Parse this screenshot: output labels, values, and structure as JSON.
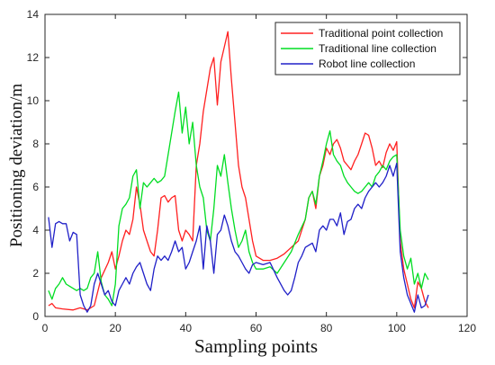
{
  "chart_data": {
    "type": "line",
    "xlabel": "Sampling points",
    "ylabel": "Positioning deviation/m",
    "xlim": [
      0,
      120
    ],
    "ylim": [
      0,
      14
    ],
    "xticks": [
      0,
      20,
      40,
      60,
      80,
      100,
      120
    ],
    "yticks": [
      0,
      2,
      4,
      6,
      8,
      10,
      12,
      14
    ],
    "grid": false,
    "legend_position": "top-right",
    "series": [
      {
        "name": "Traditional point collection",
        "color": "#ff2020",
        "points": [
          [
            1,
            0.5
          ],
          [
            2,
            0.6
          ],
          [
            3,
            0.4
          ],
          [
            5,
            0.35
          ],
          [
            8,
            0.3
          ],
          [
            10,
            0.4
          ],
          [
            12,
            0.3
          ],
          [
            14,
            0.5
          ],
          [
            16,
            1.8
          ],
          [
            18,
            2.5
          ],
          [
            19,
            3.0
          ],
          [
            20,
            2.2
          ],
          [
            21,
            2.8
          ],
          [
            22,
            3.5
          ],
          [
            23,
            4.0
          ],
          [
            24,
            3.8
          ],
          [
            25,
            4.5
          ],
          [
            26,
            6.0
          ],
          [
            27,
            5.2
          ],
          [
            28,
            4.0
          ],
          [
            29,
            3.5
          ],
          [
            30,
            3.0
          ],
          [
            31,
            2.8
          ],
          [
            32,
            4.0
          ],
          [
            33,
            5.5
          ],
          [
            34,
            5.6
          ],
          [
            35,
            5.3
          ],
          [
            36,
            5.5
          ],
          [
            37,
            5.6
          ],
          [
            38,
            4.0
          ],
          [
            39,
            3.5
          ],
          [
            40,
            4.0
          ],
          [
            41,
            3.8
          ],
          [
            42,
            3.5
          ],
          [
            43,
            7.0
          ],
          [
            44,
            8.0
          ],
          [
            45,
            9.5
          ],
          [
            46,
            10.5
          ],
          [
            47,
            11.5
          ],
          [
            48,
            12.0
          ],
          [
            49,
            9.8
          ],
          [
            50,
            11.8
          ],
          [
            51,
            12.5
          ],
          [
            52,
            13.2
          ],
          [
            53,
            11.0
          ],
          [
            54,
            9.0
          ],
          [
            55,
            7.0
          ],
          [
            56,
            6.0
          ],
          [
            57,
            5.5
          ],
          [
            58,
            4.5
          ],
          [
            59,
            3.5
          ],
          [
            60,
            2.8
          ],
          [
            62,
            2.6
          ],
          [
            64,
            2.6
          ],
          [
            66,
            2.7
          ],
          [
            68,
            2.9
          ],
          [
            70,
            3.2
          ],
          [
            72,
            3.5
          ],
          [
            74,
            4.5
          ],
          [
            75,
            5.5
          ],
          [
            76,
            5.8
          ],
          [
            77,
            5.0
          ],
          [
            78,
            6.5
          ],
          [
            79,
            7.0
          ],
          [
            80,
            7.8
          ],
          [
            81,
            7.5
          ],
          [
            82,
            8.0
          ],
          [
            83,
            8.2
          ],
          [
            84,
            7.8
          ],
          [
            85,
            7.2
          ],
          [
            86,
            7.0
          ],
          [
            87,
            6.8
          ],
          [
            88,
            7.2
          ],
          [
            89,
            7.5
          ],
          [
            90,
            8.0
          ],
          [
            91,
            8.5
          ],
          [
            92,
            8.4
          ],
          [
            93,
            7.8
          ],
          [
            94,
            7.0
          ],
          [
            95,
            7.2
          ],
          [
            96,
            6.9
          ],
          [
            97,
            7.6
          ],
          [
            98,
            8.0
          ],
          [
            99,
            7.7
          ],
          [
            100,
            8.1
          ],
          [
            101,
            3.5
          ],
          [
            102,
            2.2
          ],
          [
            103,
            1.5
          ],
          [
            104,
            0.8
          ],
          [
            105,
            0.4
          ],
          [
            106,
            1.6
          ],
          [
            107,
            1.3
          ],
          [
            108,
            0.7
          ],
          [
            109,
            0.4
          ]
        ]
      },
      {
        "name": "Traditional line collection",
        "color": "#00dd22",
        "points": [
          [
            1,
            1.2
          ],
          [
            2,
            0.8
          ],
          [
            3,
            1.3
          ],
          [
            4,
            1.5
          ],
          [
            5,
            1.8
          ],
          [
            6,
            1.5
          ],
          [
            7,
            1.4
          ],
          [
            8,
            1.3
          ],
          [
            9,
            1.2
          ],
          [
            10,
            1.3
          ],
          [
            11,
            1.2
          ],
          [
            12,
            1.3
          ],
          [
            13,
            1.8
          ],
          [
            14,
            2.0
          ],
          [
            15,
            3.0
          ],
          [
            16,
            1.6
          ],
          [
            17,
            1.0
          ],
          [
            18,
            0.8
          ],
          [
            19,
            0.5
          ],
          [
            20,
            1.5
          ],
          [
            21,
            4.2
          ],
          [
            22,
            5.0
          ],
          [
            23,
            5.2
          ],
          [
            24,
            5.5
          ],
          [
            25,
            6.5
          ],
          [
            26,
            6.8
          ],
          [
            27,
            5.0
          ],
          [
            28,
            6.2
          ],
          [
            29,
            6.0
          ],
          [
            30,
            6.2
          ],
          [
            31,
            6.4
          ],
          [
            32,
            6.2
          ],
          [
            33,
            6.3
          ],
          [
            34,
            6.5
          ],
          [
            35,
            7.5
          ],
          [
            36,
            8.5
          ],
          [
            37,
            9.5
          ],
          [
            38,
            10.4
          ],
          [
            39,
            8.5
          ],
          [
            40,
            9.7
          ],
          [
            41,
            8.0
          ],
          [
            42,
            9.0
          ],
          [
            43,
            7.0
          ],
          [
            44,
            6.0
          ],
          [
            45,
            5.5
          ],
          [
            46,
            4.0
          ],
          [
            47,
            3.5
          ],
          [
            48,
            5.0
          ],
          [
            49,
            7.0
          ],
          [
            50,
            6.5
          ],
          [
            51,
            7.5
          ],
          [
            52,
            6.2
          ],
          [
            53,
            5.0
          ],
          [
            54,
            4.0
          ],
          [
            55,
            3.2
          ],
          [
            56,
            3.5
          ],
          [
            57,
            4.0
          ],
          [
            58,
            3.0
          ],
          [
            59,
            2.5
          ],
          [
            60,
            2.2
          ],
          [
            62,
            2.2
          ],
          [
            64,
            2.3
          ],
          [
            66,
            2.0
          ],
          [
            68,
            2.5
          ],
          [
            70,
            3.0
          ],
          [
            72,
            3.8
          ],
          [
            74,
            4.5
          ],
          [
            75,
            5.5
          ],
          [
            76,
            5.8
          ],
          [
            77,
            5.2
          ],
          [
            78,
            6.5
          ],
          [
            79,
            7.2
          ],
          [
            80,
            8.0
          ],
          [
            81,
            8.6
          ],
          [
            82,
            7.5
          ],
          [
            83,
            7.2
          ],
          [
            84,
            7.0
          ],
          [
            85,
            6.5
          ],
          [
            86,
            6.2
          ],
          [
            87,
            6.0
          ],
          [
            88,
            5.8
          ],
          [
            89,
            5.7
          ],
          [
            90,
            5.8
          ],
          [
            91,
            6.0
          ],
          [
            92,
            6.2
          ],
          [
            93,
            6.0
          ],
          [
            94,
            6.5
          ],
          [
            95,
            6.7
          ],
          [
            96,
            7.0
          ],
          [
            97,
            6.8
          ],
          [
            98,
            7.2
          ],
          [
            99,
            7.4
          ],
          [
            100,
            7.5
          ],
          [
            101,
            4.0
          ],
          [
            102,
            2.8
          ],
          [
            103,
            2.2
          ],
          [
            104,
            2.7
          ],
          [
            105,
            1.5
          ],
          [
            106,
            2.0
          ],
          [
            107,
            1.3
          ],
          [
            108,
            2.0
          ],
          [
            109,
            1.7
          ]
        ]
      },
      {
        "name": "Robot line collection",
        "color": "#2020c8",
        "points": [
          [
            1,
            4.6
          ],
          [
            2,
            3.2
          ],
          [
            3,
            4.3
          ],
          [
            4,
            4.4
          ],
          [
            5,
            4.3
          ],
          [
            6,
            4.3
          ],
          [
            7,
            3.5
          ],
          [
            8,
            3.9
          ],
          [
            9,
            3.8
          ],
          [
            10,
            1.0
          ],
          [
            11,
            0.5
          ],
          [
            12,
            0.2
          ],
          [
            13,
            0.5
          ],
          [
            14,
            1.5
          ],
          [
            15,
            2.0
          ],
          [
            16,
            1.5
          ],
          [
            17,
            1.0
          ],
          [
            18,
            1.2
          ],
          [
            19,
            0.7
          ],
          [
            20,
            0.5
          ],
          [
            21,
            1.2
          ],
          [
            22,
            1.5
          ],
          [
            23,
            1.8
          ],
          [
            24,
            1.5
          ],
          [
            25,
            2.0
          ],
          [
            26,
            2.3
          ],
          [
            27,
            2.5
          ],
          [
            28,
            2.0
          ],
          [
            29,
            1.5
          ],
          [
            30,
            1.2
          ],
          [
            31,
            2.2
          ],
          [
            32,
            2.8
          ],
          [
            33,
            2.6
          ],
          [
            34,
            2.8
          ],
          [
            35,
            2.6
          ],
          [
            36,
            3.0
          ],
          [
            37,
            3.5
          ],
          [
            38,
            3.0
          ],
          [
            39,
            3.2
          ],
          [
            40,
            2.2
          ],
          [
            41,
            2.5
          ],
          [
            42,
            3.0
          ],
          [
            43,
            3.5
          ],
          [
            44,
            4.2
          ],
          [
            45,
            2.2
          ],
          [
            46,
            4.2
          ],
          [
            47,
            3.5
          ],
          [
            48,
            2.0
          ],
          [
            49,
            3.8
          ],
          [
            50,
            4.0
          ],
          [
            51,
            4.7
          ],
          [
            52,
            4.2
          ],
          [
            53,
            3.5
          ],
          [
            54,
            3.0
          ],
          [
            55,
            2.8
          ],
          [
            56,
            2.5
          ],
          [
            57,
            2.2
          ],
          [
            58,
            2.0
          ],
          [
            59,
            2.4
          ],
          [
            60,
            2.5
          ],
          [
            62,
            2.4
          ],
          [
            64,
            2.5
          ],
          [
            66,
            1.8
          ],
          [
            68,
            1.2
          ],
          [
            69,
            1.0
          ],
          [
            70,
            1.2
          ],
          [
            71,
            1.8
          ],
          [
            72,
            2.5
          ],
          [
            73,
            2.8
          ],
          [
            74,
            3.2
          ],
          [
            75,
            3.3
          ],
          [
            76,
            3.4
          ],
          [
            77,
            3.0
          ],
          [
            78,
            4.0
          ],
          [
            79,
            4.2
          ],
          [
            80,
            4.0
          ],
          [
            81,
            4.5
          ],
          [
            82,
            4.5
          ],
          [
            83,
            4.2
          ],
          [
            84,
            4.8
          ],
          [
            85,
            3.8
          ],
          [
            86,
            4.4
          ],
          [
            87,
            4.5
          ],
          [
            88,
            5.0
          ],
          [
            89,
            5.2
          ],
          [
            90,
            5.0
          ],
          [
            91,
            5.5
          ],
          [
            92,
            5.8
          ],
          [
            93,
            6.0
          ],
          [
            94,
            6.2
          ],
          [
            95,
            6.0
          ],
          [
            96,
            6.2
          ],
          [
            97,
            6.5
          ],
          [
            98,
            7.0
          ],
          [
            99,
            6.5
          ],
          [
            100,
            7.1
          ],
          [
            101,
            3.0
          ],
          [
            102,
            1.8
          ],
          [
            103,
            1.0
          ],
          [
            104,
            0.6
          ],
          [
            105,
            0.2
          ],
          [
            106,
            1.0
          ],
          [
            107,
            0.4
          ],
          [
            108,
            0.5
          ],
          [
            109,
            1.0
          ]
        ]
      }
    ]
  }
}
